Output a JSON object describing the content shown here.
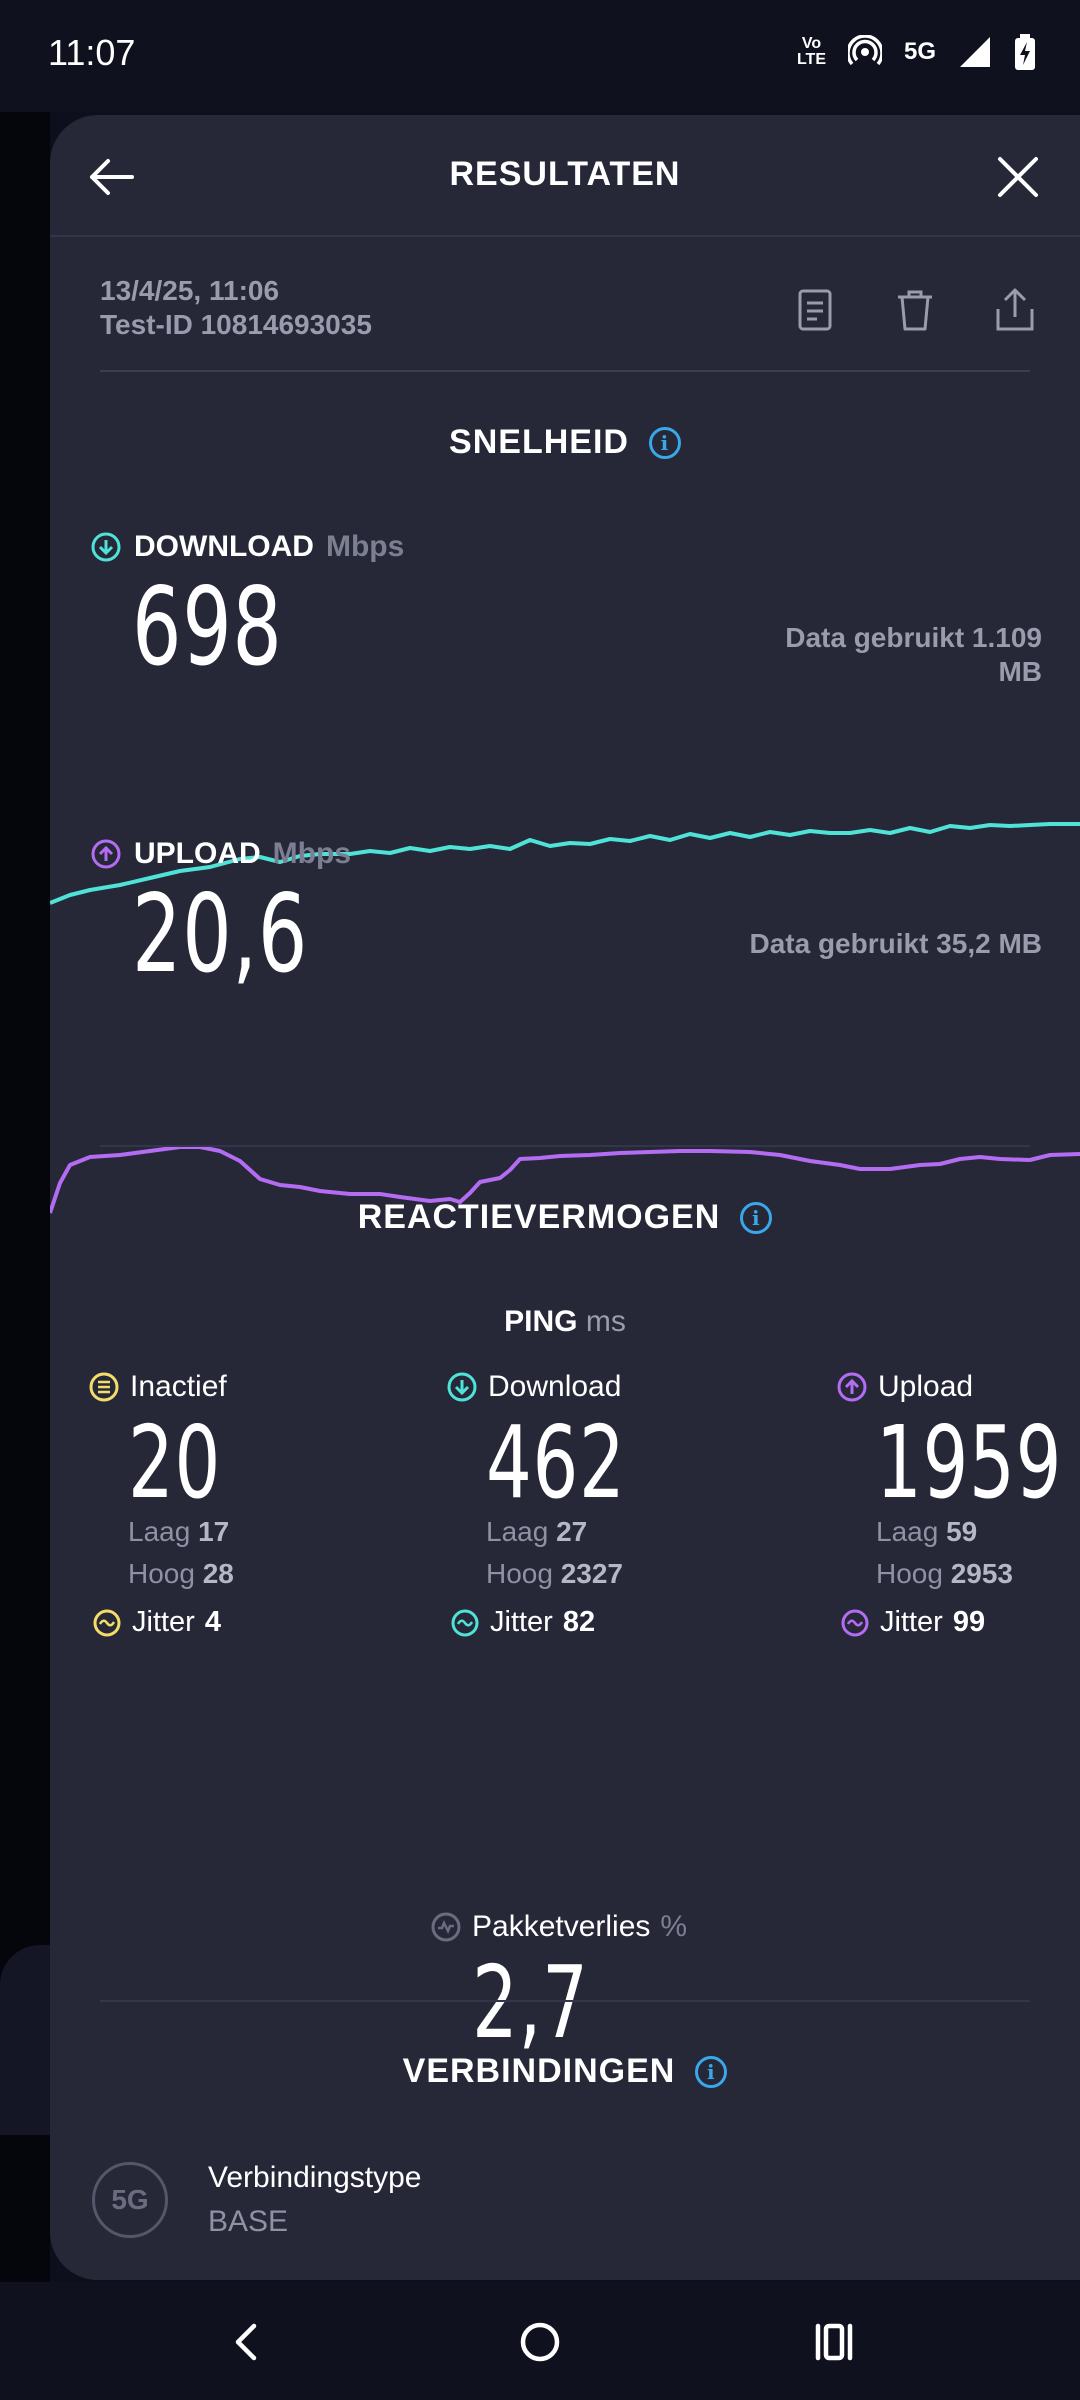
{
  "status_bar": {
    "time": "11:07",
    "volte_top": "Vo",
    "volte_bottom": "LTE",
    "network": "5G",
    "icons": [
      "volte-icon",
      "hotspot-icon",
      "signal-icon",
      "battery-charging-icon"
    ]
  },
  "header": {
    "title": "RESULTATEN",
    "back_icon": "arrow-left-icon",
    "close_icon": "close-icon"
  },
  "meta": {
    "date": "13/4/25, 11:06",
    "test_id": "Test-ID 10814693035",
    "actions": [
      "note-icon",
      "trash-icon",
      "share-icon"
    ]
  },
  "speed": {
    "title": "SNELHEID",
    "download": {
      "label": "DOWNLOAD",
      "unit": "Mbps",
      "value": "698",
      "data_used": "Data gebruikt 1.109 MB",
      "color": "#4fe3d8"
    },
    "upload": {
      "label": "UPLOAD",
      "unit": "Mbps",
      "value": "20,6",
      "data_used": "Data gebruikt 35,2 MB",
      "color": "#b46cf2"
    }
  },
  "responsiveness": {
    "title": "REACTIEVERMOGEN",
    "ping_label": "PING",
    "ping_unit": "ms",
    "idle": {
      "label": "Inactief",
      "value": "20",
      "low_label": "Laag",
      "low": "17",
      "high_label": "Hoog",
      "high": "28",
      "jitter_label": "Jitter",
      "jitter": "4",
      "color": "#f3dd6a"
    },
    "download": {
      "label": "Download",
      "value": "462",
      "low_label": "Laag",
      "low": "27",
      "high_label": "Hoog",
      "high": "2327",
      "jitter_label": "Jitter",
      "jitter": "82",
      "color": "#4fe3d8"
    },
    "upload": {
      "label": "Upload",
      "value": "1959",
      "low_label": "Laag",
      "low": "59",
      "high_label": "Hoog",
      "high": "2953",
      "jitter_label": "Jitter",
      "jitter": "99",
      "color": "#b46cf2"
    },
    "packet_loss": {
      "label": "Pakketverlies",
      "unit": "%",
      "value": "2,7"
    }
  },
  "connections": {
    "title": "VERBINDINGEN",
    "icon_text": "5G",
    "type_label": "Verbindingstype",
    "type_value": "BASE"
  },
  "navbar": {
    "icons": [
      "nav-back-icon",
      "nav-home-icon",
      "nav-recents-icon"
    ]
  }
}
